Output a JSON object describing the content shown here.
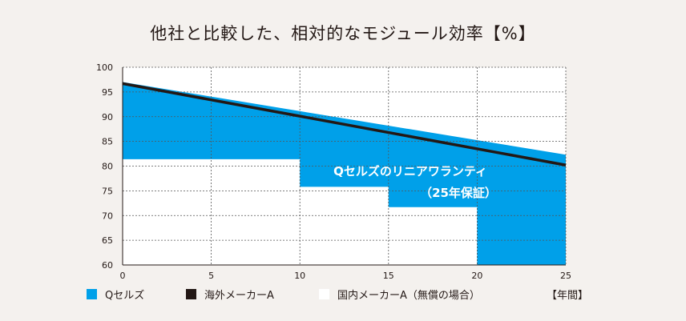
{
  "chart_data": {
    "type": "area",
    "title": "他社と比較した、相対的なモジュール効率【%】",
    "x_unit": "【年間】",
    "xlim": [
      0,
      25
    ],
    "ylim": [
      60,
      100
    ],
    "x_ticks": [
      0,
      5,
      10,
      15,
      20,
      25
    ],
    "y_ticks": [
      60,
      65,
      70,
      75,
      80,
      85,
      90,
      95,
      100
    ],
    "grid": true,
    "series": [
      {
        "name": "Qセルズ",
        "kind": "area",
        "color": "#00a0e9",
        "x": [
          0,
          25
        ],
        "y": [
          97,
          82.3
        ]
      },
      {
        "name": "海外メーカーA",
        "kind": "line",
        "color": "#231815",
        "x": [
          0,
          25
        ],
        "y": [
          96.7,
          80.2
        ]
      },
      {
        "name": "国内メーカーA（無償の場合）",
        "kind": "step",
        "color": "#ffffff",
        "x": [
          0,
          10,
          10,
          15,
          15,
          20,
          20
        ],
        "y": [
          81.4,
          81.4,
          75.8,
          75.8,
          71.7,
          71.7,
          60
        ]
      }
    ],
    "annotations": [
      "Qセルズのリニアワランティ",
      "（25年保証）"
    ]
  }
}
